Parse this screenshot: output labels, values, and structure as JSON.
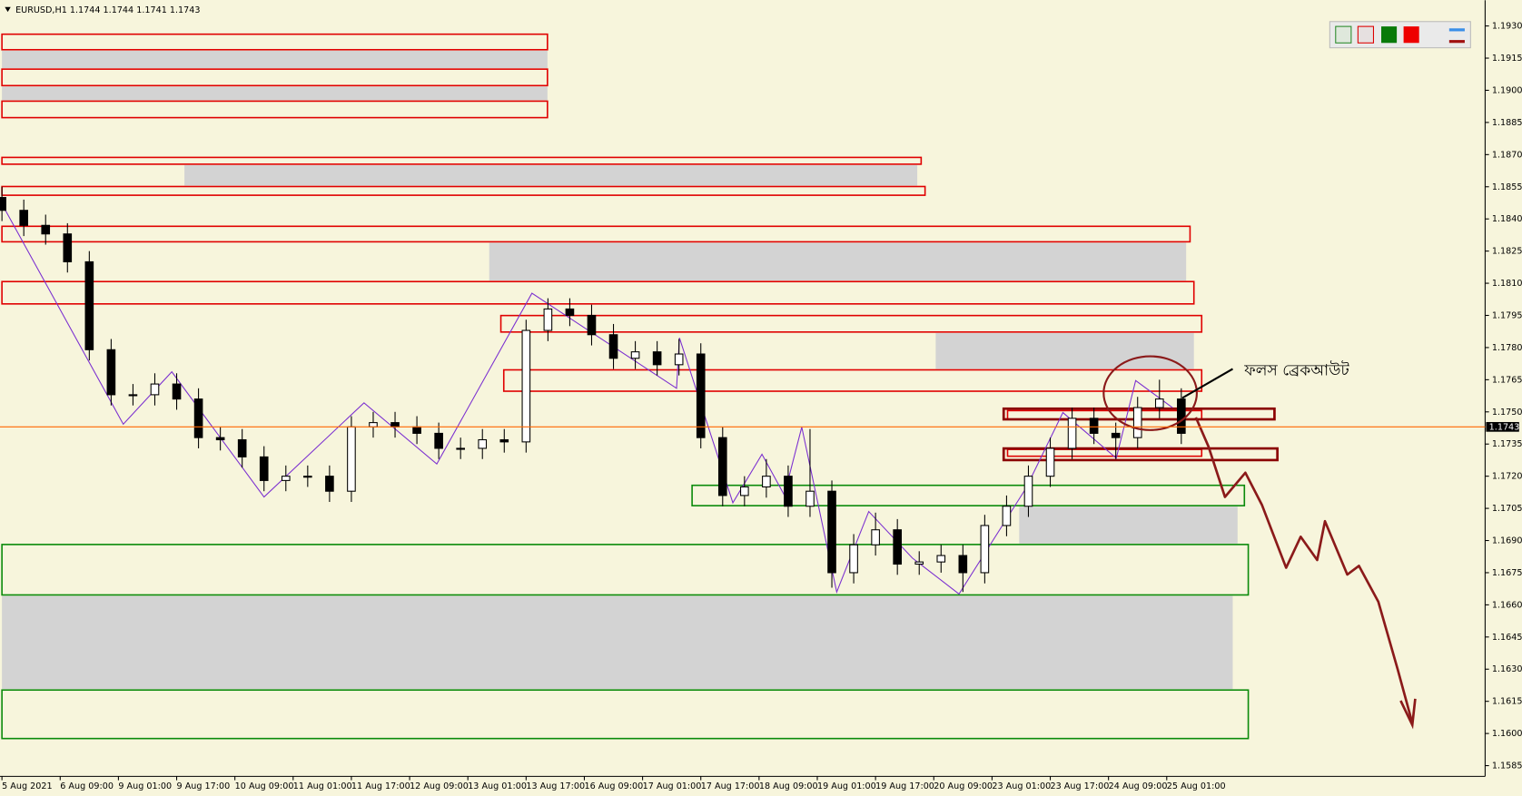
{
  "chart_data": {
    "type": "candlestick",
    "title": "EURUSD,H1  1.1744 1.1744 1.1741 1.1743",
    "annotation": "ফলস ব্রেকআউট",
    "current_price": 1.1743,
    "x": [
      0,
      6,
      12,
      18,
      24,
      30,
      36,
      42,
      48,
      54,
      60,
      66,
      72,
      78,
      84,
      90,
      96,
      102,
      108,
      114,
      120,
      126,
      132,
      138,
      144,
      150,
      156,
      162,
      168,
      174,
      180,
      186,
      192,
      198,
      204,
      210,
      216,
      222,
      228,
      234,
      240,
      246,
      252,
      258,
      264,
      270,
      276,
      282,
      288,
      294,
      300,
      306,
      312,
      318,
      324
    ],
    "open": [
      1.185,
      1.1844,
      1.1837,
      1.1833,
      1.182,
      1.1779,
      1.1758,
      1.1758,
      1.1763,
      1.1756,
      1.1738,
      1.1737,
      1.1729,
      1.1718,
      1.172,
      1.172,
      1.1713,
      1.1743,
      1.1745,
      1.1743,
      1.174,
      1.1733,
      1.1733,
      1.1737,
      1.1736,
      1.1788,
      1.1798,
      1.1795,
      1.1786,
      1.1775,
      1.1778,
      1.1772,
      1.1777,
      1.1738,
      1.1711,
      1.1715,
      1.172,
      1.1706,
      1.1713,
      1.1675,
      1.1688,
      1.1695,
      1.1679,
      1.168,
      1.1683,
      1.1675,
      1.1697,
      1.1706,
      1.172,
      1.1733,
      1.1747,
      1.174,
      1.1738,
      1.1752,
      1.1756
    ],
    "high": [
      1.1855,
      1.1849,
      1.1842,
      1.1838,
      1.1825,
      1.1784,
      1.1763,
      1.1768,
      1.1768,
      1.1761,
      1.1743,
      1.1742,
      1.1734,
      1.1725,
      1.1725,
      1.1725,
      1.1748,
      1.175,
      1.175,
      1.1748,
      1.1745,
      1.1738,
      1.1742,
      1.1742,
      1.1793,
      1.1803,
      1.1803,
      1.18,
      1.1791,
      1.1783,
      1.1783,
      1.1784,
      1.1782,
      1.1743,
      1.172,
      1.1728,
      1.1725,
      1.1742,
      1.1718,
      1.1693,
      1.1703,
      1.17,
      1.1685,
      1.1688,
      1.1688,
      1.1702,
      1.1711,
      1.1725,
      1.1738,
      1.1752,
      1.1752,
      1.1745,
      1.1757,
      1.1765,
      1.1761
    ],
    "low": [
      1.1839,
      1.1832,
      1.1828,
      1.1815,
      1.1774,
      1.1753,
      1.1753,
      1.1753,
      1.1751,
      1.1733,
      1.1732,
      1.1724,
      1.1713,
      1.1713,
      1.1715,
      1.1708,
      1.1708,
      1.1738,
      1.1738,
      1.1735,
      1.1728,
      1.1728,
      1.1728,
      1.1731,
      1.1731,
      1.1783,
      1.179,
      1.1781,
      1.177,
      1.177,
      1.1767,
      1.1767,
      1.1733,
      1.1706,
      1.1706,
      1.171,
      1.1701,
      1.1701,
      1.1668,
      1.167,
      1.1683,
      1.1674,
      1.1674,
      1.1675,
      1.1666,
      1.167,
      1.1692,
      1.1701,
      1.1715,
      1.1728,
      1.1735,
      1.1728,
      1.1733,
      1.1747,
      1.1735
    ],
    "close": [
      1.1844,
      1.1837,
      1.1833,
      1.182,
      1.1779,
      1.1758,
      1.1758,
      1.1763,
      1.1756,
      1.1738,
      1.1737,
      1.1729,
      1.1718,
      1.172,
      1.172,
      1.1713,
      1.1743,
      1.1745,
      1.1743,
      1.174,
      1.1733,
      1.1733,
      1.1737,
      1.1736,
      1.1788,
      1.1798,
      1.1795,
      1.1786,
      1.1775,
      1.1778,
      1.1772,
      1.1777,
      1.1738,
      1.1711,
      1.1715,
      1.172,
      1.1706,
      1.1713,
      1.1675,
      1.1688,
      1.1695,
      1.1679,
      1.168,
      1.1683,
      1.1675,
      1.1697,
      1.1706,
      1.172,
      1.1733,
      1.1747,
      1.174,
      1.1738,
      1.1752,
      1.1756,
      1.174
    ],
    "up_color": "#ffffff",
    "down_color": "#000000",
    "wick_color": "#000000",
    "price_line_color": "#ff6600",
    "xlim": [
      0,
      408
    ],
    "ylim": [
      1.158,
      1.1942
    ],
    "xticks": [
      {
        "value": 0,
        "label": "5 Aug 2021"
      },
      {
        "value": 16,
        "label": "6 Aug 09:00"
      },
      {
        "value": 32,
        "label": "9 Aug 01:00"
      },
      {
        "value": 48,
        "label": "9 Aug 17:00"
      },
      {
        "value": 64,
        "label": "10 Aug 09:00"
      },
      {
        "value": 80,
        "label": "11 Aug 01:00"
      },
      {
        "value": 96,
        "label": "11 Aug 17:00"
      },
      {
        "value": 112,
        "label": "12 Aug 09:00"
      },
      {
        "value": 128,
        "label": "13 Aug 01:00"
      },
      {
        "value": 144,
        "label": "13 Aug 17:00"
      },
      {
        "value": 160,
        "label": "16 Aug 09:00"
      },
      {
        "value": 176,
        "label": "17 Aug 01:00"
      },
      {
        "value": 192,
        "label": "17 Aug 17:00"
      },
      {
        "value": 208,
        "label": "18 Aug 09:00"
      },
      {
        "value": 224,
        "label": "19 Aug 01:00"
      },
      {
        "value": 240,
        "label": "19 Aug 17:00"
      },
      {
        "value": 256,
        "label": "20 Aug 09:00"
      },
      {
        "value": 272,
        "label": "23 Aug 01:00"
      },
      {
        "value": 288,
        "label": "23 Aug 17:00"
      },
      {
        "value": 304,
        "label": "24 Aug 09:00"
      },
      {
        "value": 320,
        "label": "25 Aug 01:00"
      }
    ],
    "yticks": [
      {
        "value": 1.1585,
        "label": "1.1585"
      },
      {
        "value": 1.16,
        "label": "1.1600"
      },
      {
        "value": 1.1615,
        "label": "1.1615"
      },
      {
        "value": 1.163,
        "label": "1.1630"
      },
      {
        "value": 1.1645,
        "label": "1.1645"
      },
      {
        "value": 1.166,
        "label": "1.1660"
      },
      {
        "value": 1.1675,
        "label": "1.1675"
      },
      {
        "value": 1.169,
        "label": "1.1690"
      },
      {
        "value": 1.1705,
        "label": "1.1705"
      },
      {
        "value": 1.172,
        "label": "1.1720"
      },
      {
        "value": 1.1735,
        "label": "1.1735"
      },
      {
        "value": 1.175,
        "label": "1.1750"
      },
      {
        "value": 1.1765,
        "label": "1.1765"
      },
      {
        "value": 1.178,
        "label": "1.1780"
      },
      {
        "value": 1.1795,
        "label": "1.1795"
      },
      {
        "value": 1.181,
        "label": "1.1810"
      },
      {
        "value": 1.1825,
        "label": "1.1825"
      },
      {
        "value": 1.184,
        "label": "1.1840"
      },
      {
        "value": 1.1855,
        "label": "1.1855"
      },
      {
        "value": 1.187,
        "label": "1.1870"
      },
      {
        "value": 1.1885,
        "label": "1.1885"
      },
      {
        "value": 1.19,
        "label": "1.1900"
      },
      {
        "value": 1.1915,
        "label": "1.1915"
      },
      {
        "value": 1.193,
        "label": "1.1930"
      }
    ]
  }
}
